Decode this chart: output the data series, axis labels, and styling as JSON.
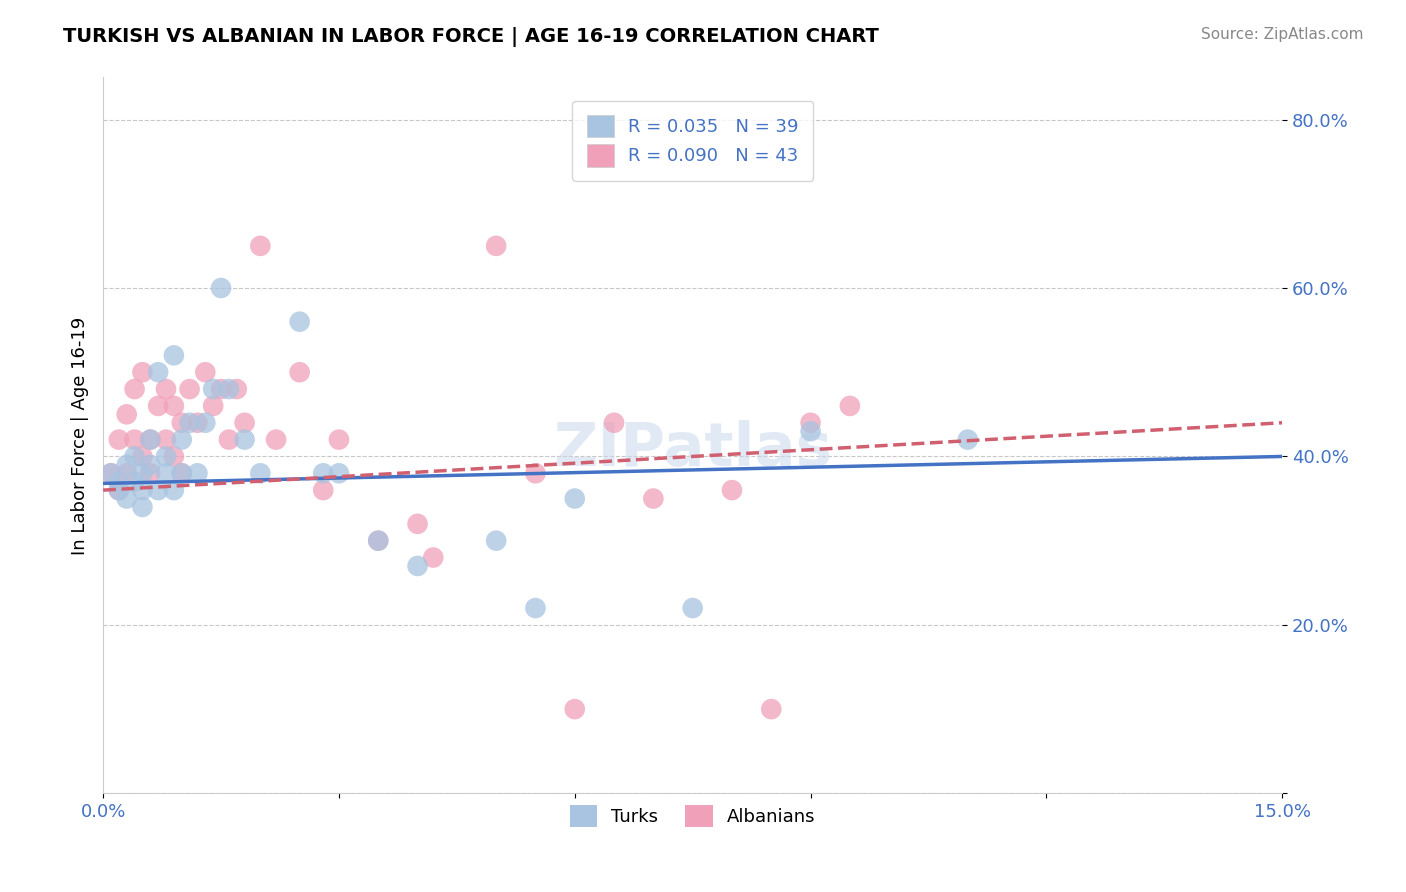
{
  "title": "TURKISH VS ALBANIAN IN LABOR FORCE | AGE 16-19 CORRELATION CHART",
  "source": "Source: ZipAtlas.com",
  "ylabel": "In Labor Force | Age 16-19",
  "xlim": [
    0.0,
    0.15
  ],
  "ylim": [
    0.0,
    0.85
  ],
  "turks_R": 0.035,
  "turks_N": 39,
  "albanians_R": 0.09,
  "albanians_N": 43,
  "turks_color": "#a8c4e0",
  "albanians_color": "#f0a0b8",
  "turks_line_color": "#4472c4",
  "albanians_line_color": "#d06070",
  "turks_x": [
    0.001,
    0.002,
    0.002,
    0.003,
    0.003,
    0.004,
    0.004,
    0.005,
    0.005,
    0.005,
    0.006,
    0.006,
    0.007,
    0.007,
    0.008,
    0.008,
    0.009,
    0.009,
    0.01,
    0.01,
    0.011,
    0.012,
    0.013,
    0.014,
    0.015,
    0.016,
    0.018,
    0.02,
    0.025,
    0.028,
    0.03,
    0.035,
    0.04,
    0.05,
    0.055,
    0.06,
    0.075,
    0.09,
    0.11
  ],
  "turks_y": [
    0.38,
    0.37,
    0.36,
    0.39,
    0.35,
    0.4,
    0.37,
    0.38,
    0.36,
    0.34,
    0.42,
    0.39,
    0.5,
    0.36,
    0.4,
    0.38,
    0.52,
    0.36,
    0.38,
    0.42,
    0.44,
    0.38,
    0.44,
    0.48,
    0.6,
    0.48,
    0.42,
    0.38,
    0.56,
    0.38,
    0.38,
    0.3,
    0.27,
    0.3,
    0.22,
    0.35,
    0.22,
    0.43,
    0.42
  ],
  "albanians_x": [
    0.001,
    0.002,
    0.002,
    0.003,
    0.003,
    0.004,
    0.004,
    0.005,
    0.005,
    0.006,
    0.006,
    0.007,
    0.008,
    0.008,
    0.009,
    0.009,
    0.01,
    0.01,
    0.011,
    0.012,
    0.013,
    0.014,
    0.015,
    0.016,
    0.017,
    0.018,
    0.02,
    0.022,
    0.025,
    0.028,
    0.03,
    0.035,
    0.04,
    0.042,
    0.05,
    0.055,
    0.06,
    0.065,
    0.07,
    0.08,
    0.085,
    0.09,
    0.095
  ],
  "albanians_y": [
    0.38,
    0.42,
    0.36,
    0.45,
    0.38,
    0.48,
    0.42,
    0.5,
    0.4,
    0.42,
    0.38,
    0.46,
    0.48,
    0.42,
    0.46,
    0.4,
    0.44,
    0.38,
    0.48,
    0.44,
    0.5,
    0.46,
    0.48,
    0.42,
    0.48,
    0.44,
    0.65,
    0.42,
    0.5,
    0.36,
    0.42,
    0.3,
    0.32,
    0.28,
    0.65,
    0.38,
    0.1,
    0.44,
    0.35,
    0.36,
    0.1,
    0.44,
    0.46
  ],
  "turks_trend_x": [
    0.0,
    0.15
  ],
  "turks_trend_y": [
    0.368,
    0.4
  ],
  "albanians_trend_x": [
    0.0,
    0.15
  ],
  "albanians_trend_y": [
    0.36,
    0.44
  ]
}
